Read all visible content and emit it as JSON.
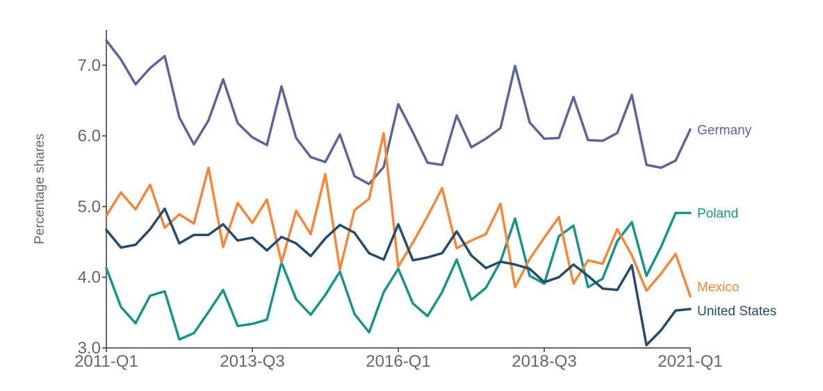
{
  "chart_data": {
    "type": "line",
    "title": "",
    "xlabel": "",
    "ylabel": "Percentage shares",
    "ylim": [
      3.0,
      7.5
    ],
    "grid": false,
    "legend": "inline-right",
    "y_ticks": [
      3.0,
      4.0,
      5.0,
      6.0,
      7.0
    ],
    "y_tick_labels": [
      "3.0",
      "4.0",
      "5.0",
      "6.0",
      "7.0"
    ],
    "x_ticks": [
      "2011-Q1",
      "2013-Q3",
      "2016-Q1",
      "2018-Q3",
      "2021-Q1"
    ],
    "x": [
      "2011-Q1",
      "2011-Q2",
      "2011-Q3",
      "2011-Q4",
      "2012-Q1",
      "2012-Q2",
      "2012-Q3",
      "2012-Q4",
      "2013-Q1",
      "2013-Q2",
      "2013-Q3",
      "2013-Q4",
      "2014-Q1",
      "2014-Q2",
      "2014-Q3",
      "2014-Q4",
      "2015-Q1",
      "2015-Q2",
      "2015-Q3",
      "2015-Q4",
      "2016-Q1",
      "2016-Q2",
      "2016-Q3",
      "2016-Q4",
      "2017-Q1",
      "2017-Q2",
      "2017-Q3",
      "2017-Q4",
      "2018-Q1",
      "2018-Q2",
      "2018-Q3",
      "2018-Q4",
      "2019-Q1",
      "2019-Q2",
      "2019-Q3",
      "2019-Q4",
      "2020-Q1",
      "2020-Q2",
      "2020-Q3",
      "2020-Q4",
      "2021-Q1"
    ],
    "series": [
      {
        "name": "Germany",
        "color": "#5a6599",
        "values": [
          7.35,
          7.08,
          6.73,
          6.96,
          7.13,
          6.26,
          5.88,
          6.22,
          6.8,
          6.18,
          5.98,
          5.87,
          6.7,
          5.97,
          5.7,
          5.63,
          6.02,
          5.43,
          5.32,
          5.56,
          6.45,
          6.05,
          5.62,
          5.59,
          6.29,
          5.84,
          5.96,
          6.11,
          6.99,
          6.19,
          5.96,
          5.97,
          6.55,
          5.94,
          5.93,
          6.04,
          6.58,
          5.59,
          5.55,
          5.65,
          6.09
        ]
      },
      {
        "name": "Poland",
        "color": "#16948a",
        "values": [
          4.13,
          3.58,
          3.35,
          3.74,
          3.8,
          3.12,
          3.21,
          3.51,
          3.82,
          3.31,
          3.34,
          3.4,
          4.21,
          3.69,
          3.47,
          3.75,
          4.08,
          3.48,
          3.22,
          3.79,
          4.12,
          3.63,
          3.45,
          3.79,
          4.25,
          3.68,
          3.85,
          4.22,
          4.83,
          4.02,
          3.91,
          4.58,
          4.73,
          3.86,
          3.98,
          4.51,
          4.78,
          4.02,
          4.43,
          4.91,
          4.91
        ]
      },
      {
        "name": "Mexico",
        "color": "#f5863a",
        "values": [
          4.87,
          5.2,
          4.96,
          5.31,
          4.7,
          4.89,
          4.76,
          5.55,
          4.43,
          5.05,
          4.77,
          5.1,
          4.21,
          4.94,
          4.61,
          5.46,
          4.11,
          4.95,
          5.11,
          6.04,
          4.15,
          4.49,
          4.86,
          5.26,
          4.41,
          4.52,
          4.61,
          5.04,
          3.86,
          4.26,
          4.56,
          4.85,
          3.91,
          4.24,
          4.19,
          4.68,
          4.31,
          3.81,
          4.05,
          4.33,
          3.73
        ]
      },
      {
        "name": "United States",
        "color": "#254b6b",
        "values": [
          4.67,
          4.42,
          4.46,
          4.68,
          4.97,
          4.48,
          4.6,
          4.6,
          4.75,
          4.52,
          4.56,
          4.38,
          4.57,
          4.48,
          4.3,
          4.55,
          4.74,
          4.63,
          4.34,
          4.25,
          4.75,
          4.24,
          4.28,
          4.34,
          4.65,
          4.31,
          4.13,
          4.22,
          4.18,
          4.12,
          3.93,
          4.0,
          4.18,
          4.02,
          3.84,
          3.82,
          4.17,
          3.04,
          3.25,
          3.53,
          3.55
        ]
      }
    ]
  }
}
